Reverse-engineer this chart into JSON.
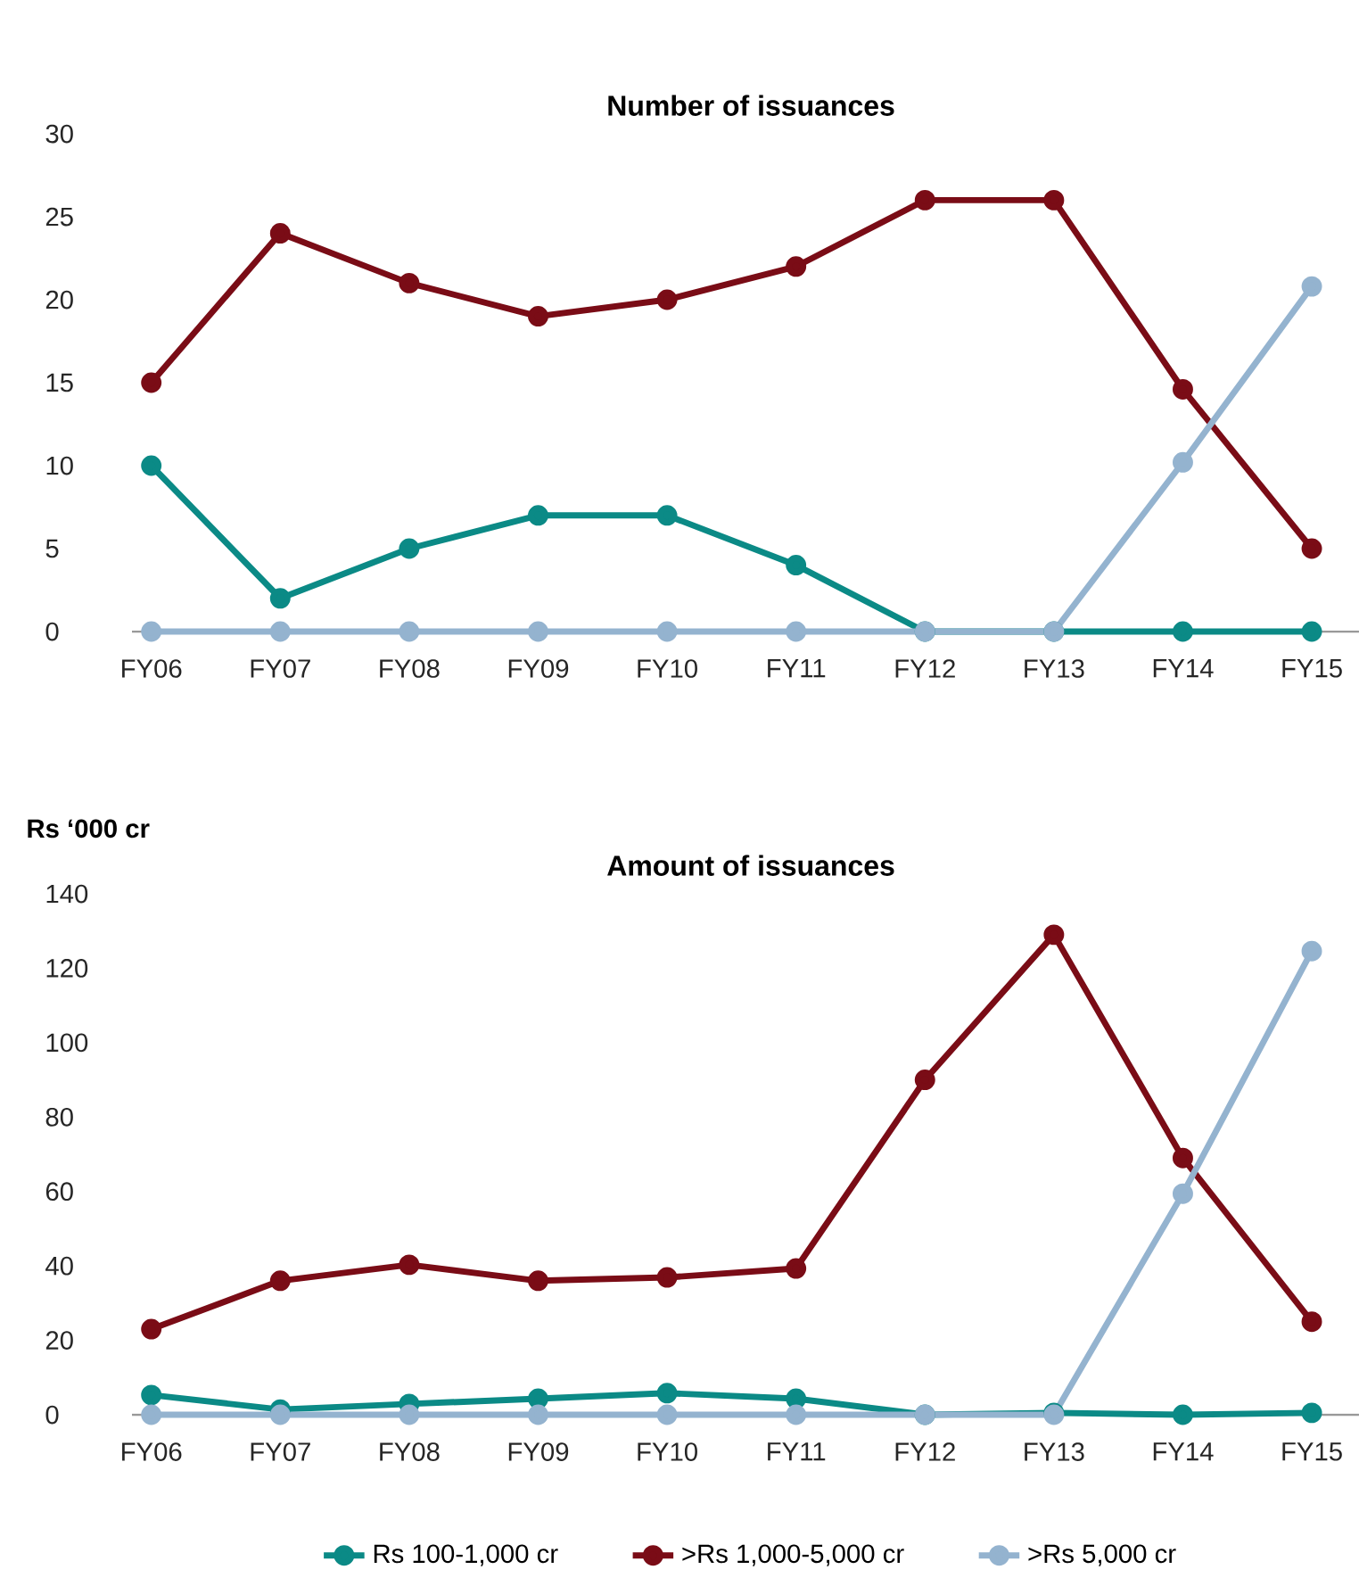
{
  "chart_data": [
    {
      "type": "line",
      "title": "Number of issuances",
      "categories": [
        "FY06",
        "FY07",
        "FY08",
        "FY09",
        "FY10",
        "FY11",
        "FY12",
        "FY13",
        "FY14",
        "FY15"
      ],
      "series": [
        {
          "color": "#0b8a86",
          "values": [
            10,
            2,
            5,
            7,
            7,
            4,
            0,
            0,
            0,
            0
          ]
        },
        {
          "color": "#7a0c16",
          "values": [
            15,
            24,
            21,
            19,
            20,
            22,
            26,
            26,
            14.6,
            5
          ]
        },
        {
          "color": "#94b3cf",
          "values": [
            0,
            0,
            0,
            0,
            0,
            0,
            0,
            0,
            10.2,
            20.8
          ]
        }
      ],
      "ylim": [
        0,
        30
      ],
      "yticks": [
        0,
        5,
        10,
        15,
        20,
        25,
        30
      ],
      "grid": false,
      "marker": "circle",
      "line_style": "solid"
    },
    {
      "type": "line",
      "title": "Amount of issuances",
      "ylabel": "Rs ‘000 cr",
      "categories": [
        "FY06",
        "FY07",
        "FY08",
        "FY09",
        "FY10",
        "FY11",
        "FY12",
        "FY13",
        "FY14",
        "FY15"
      ],
      "series": [
        {
          "name": "Rs 100-1,000 cr",
          "color": "#0b8a86",
          "values": [
            5.3,
            1.4,
            2.9,
            4.3,
            5.8,
            4.3,
            0,
            0.5,
            0,
            0.5
          ]
        },
        {
          "name": ">Rs 1,000-5,000 cr",
          "color": "#7a0c16",
          "values": [
            23,
            36,
            40.3,
            36,
            36.9,
            39.3,
            90,
            129,
            69,
            25
          ]
        },
        {
          "name": ">Rs 5,000 cr",
          "color": "#94b3cf",
          "values": [
            0,
            0,
            0,
            0,
            0,
            0,
            0,
            0,
            59.4,
            124.6
          ]
        }
      ],
      "ylim": [
        0,
        140
      ],
      "yticks": [
        0,
        20,
        40,
        60,
        80,
        100,
        120,
        140
      ],
      "grid": false,
      "marker": "circle",
      "line_style": "solid",
      "legend": "bottom"
    }
  ]
}
